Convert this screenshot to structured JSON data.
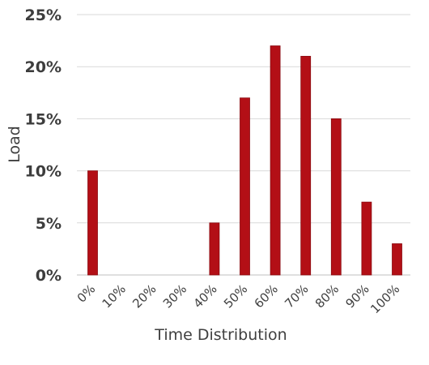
{
  "chart_data": {
    "type": "bar",
    "title": "",
    "xlabel": "Time Distribution",
    "ylabel": "Load",
    "categories": [
      "0%",
      "10%",
      "20%",
      "30%",
      "40%",
      "50%",
      "60%",
      "70%",
      "80%",
      "90%",
      "100%"
    ],
    "values": [
      10,
      0,
      0,
      0,
      5,
      17,
      22,
      21,
      15,
      7,
      3
    ],
    "yticks": [
      "0%",
      "5%",
      "10%",
      "15%",
      "20%",
      "25%"
    ],
    "ylim": [
      0,
      25
    ],
    "grid": true,
    "legend": "none",
    "colors": {
      "bar": "#b30f16",
      "bar_edge": "#8a0a10"
    }
  }
}
